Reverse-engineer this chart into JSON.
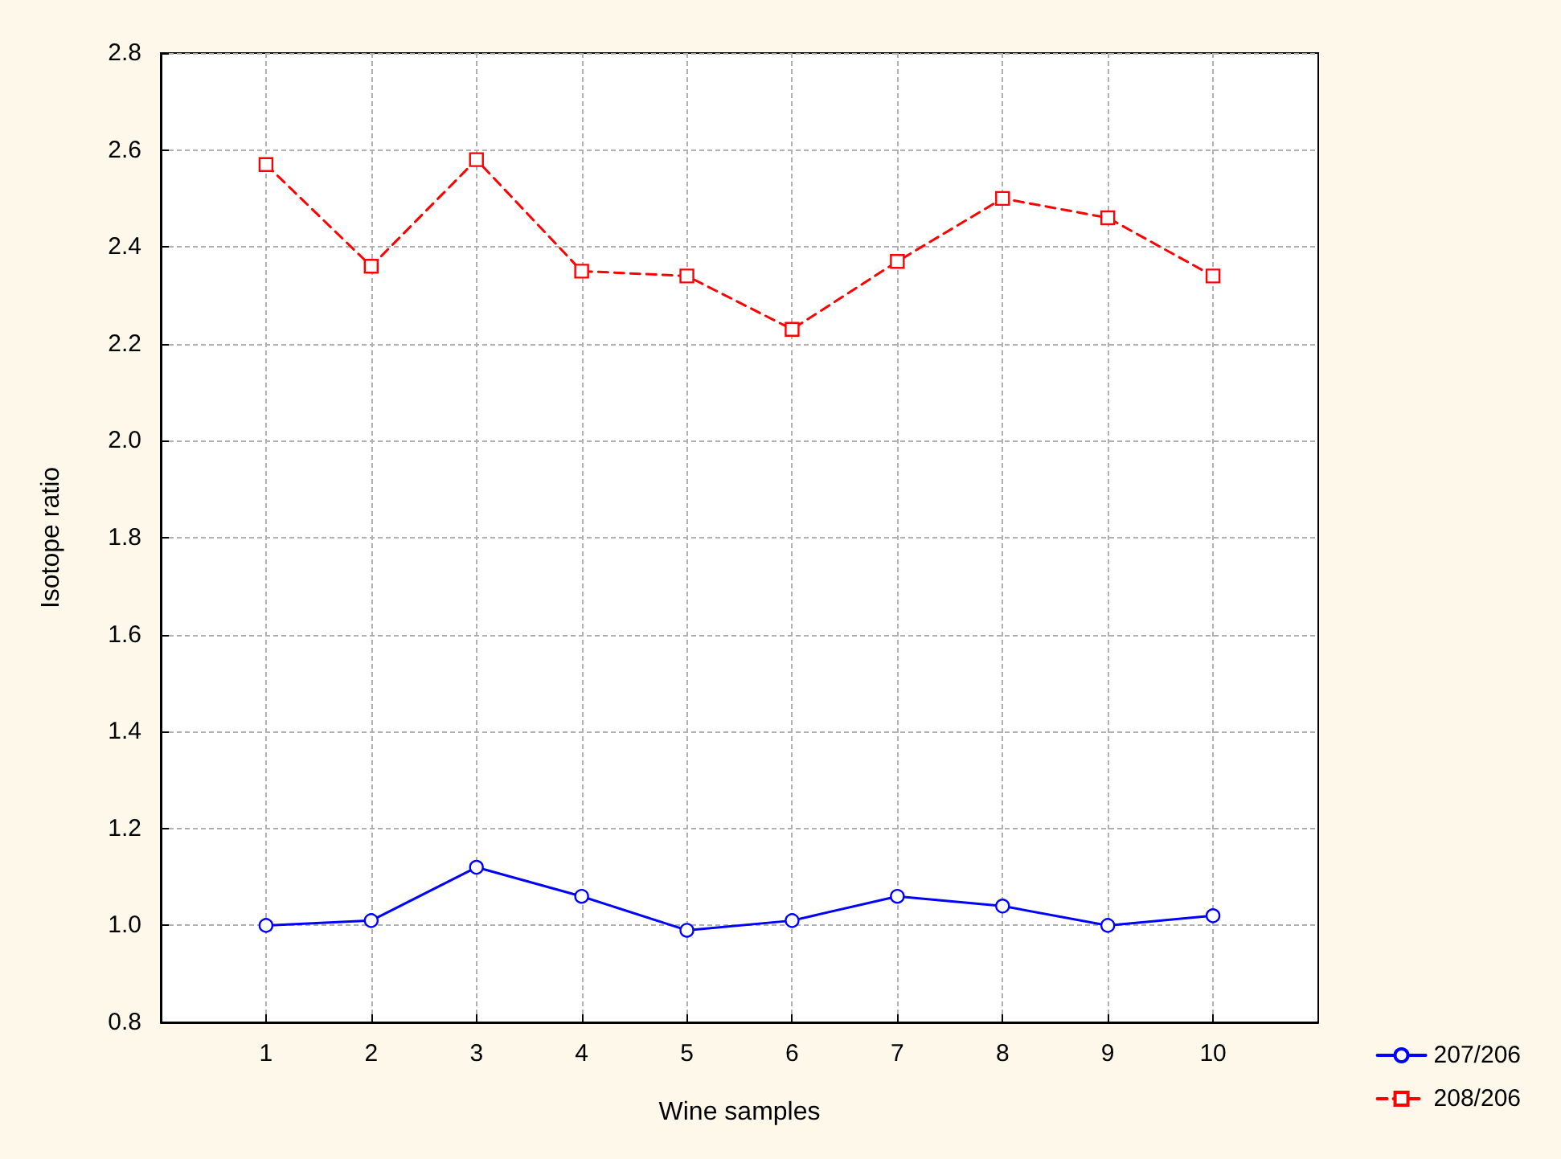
{
  "chart_data": {
    "type": "line",
    "xlabel": "Wine samples",
    "ylabel": "Isotope ratio",
    "x": [
      1,
      2,
      3,
      4,
      5,
      6,
      7,
      8,
      9,
      10
    ],
    "xlim": [
      0,
      11
    ],
    "xticks": [
      1,
      2,
      3,
      4,
      5,
      6,
      7,
      8,
      9,
      10
    ],
    "ylim": [
      0.8,
      2.8
    ],
    "yticks": [
      0.8,
      {
        "value": 1,
        "label": "1.0"
      },
      1.2,
      1.4,
      1.6,
      1.8,
      {
        "value": 2,
        "label": "2.0"
      },
      2.2,
      2.4,
      2.6,
      2.8
    ],
    "grid": true,
    "legend": "bottom right",
    "series": [
      {
        "name": "207/206",
        "color": "#0000ff",
        "marker": "circle",
        "line_style": "solid",
        "values": [
          1.0,
          1.01,
          1.12,
          1.06,
          0.99,
          1.01,
          1.06,
          1.04,
          1.0,
          1.02
        ]
      },
      {
        "name": "208/206",
        "color": "#ff0000",
        "marker": "square",
        "line_style": "dashed",
        "values": [
          2.57,
          2.36,
          2.58,
          2.35,
          2.34,
          2.23,
          2.37,
          2.5,
          2.46,
          2.34
        ]
      }
    ]
  }
}
